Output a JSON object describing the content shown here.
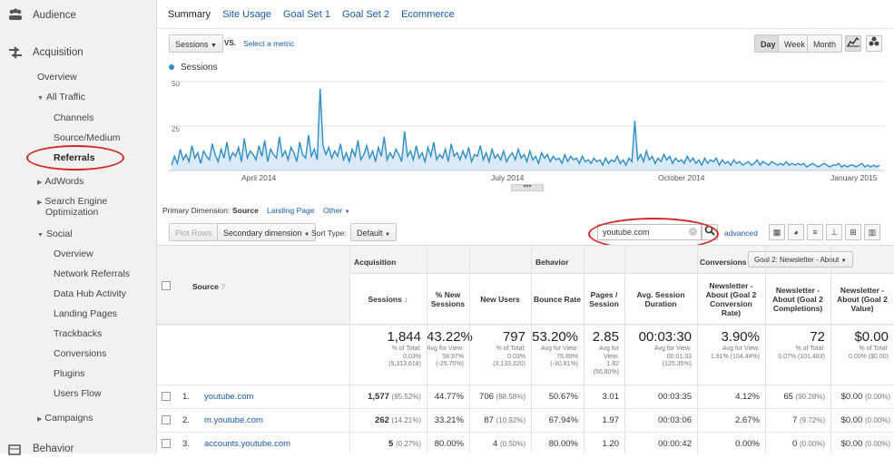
{
  "sidebar": {
    "sections": {
      "audience": "Audience",
      "acquisition": "Acquisition",
      "behavior": "Behavior"
    },
    "items": {
      "overview": "Overview",
      "all_traffic": "All Traffic",
      "channels": "Channels",
      "source_medium": "Source/Medium",
      "referrals": "Referrals",
      "adwords": "AdWords",
      "seo_1": "Search Engine",
      "seo_2": "Optimization",
      "social": "Social",
      "social_overview": "Overview",
      "network_referrals": "Network Referrals",
      "data_hub": "Data Hub Activity",
      "landing_pages": "Landing Pages",
      "trackbacks": "Trackbacks",
      "conversions": "Conversions",
      "plugins": "Plugins",
      "users_flow": "Users Flow",
      "campaigns": "Campaigns"
    }
  },
  "tabs": [
    "Summary",
    "Site Usage",
    "Goal Set 1",
    "Goal Set 2",
    "Ecommerce"
  ],
  "toolbar": {
    "metric_select": "Sessions",
    "vs": "VS.",
    "select_metric": "Select a metric",
    "day": "Day",
    "week": "Week",
    "month": "Month"
  },
  "chart_data": {
    "type": "line",
    "legend": "Sessions",
    "y_ticks": [
      "50",
      "25"
    ],
    "x_ticks": [
      "April 2014",
      "July 2014",
      "October 2014",
      "January 2015"
    ],
    "ylim": [
      0,
      50
    ],
    "series": [
      {
        "name": "Sessions",
        "values": [
          3,
          8,
          4,
          12,
          6,
          9,
          5,
          14,
          7,
          10,
          4,
          11,
          8,
          6,
          15,
          9,
          5,
          12,
          7,
          16,
          6,
          10,
          8,
          13,
          5,
          18,
          7,
          11,
          9,
          6,
          14,
          8,
          17,
          5,
          12,
          9,
          7,
          19,
          8,
          11,
          6,
          13,
          10,
          5,
          16,
          9,
          7,
          20,
          8,
          12,
          6,
          46,
          14,
          9,
          13,
          7,
          11,
          8,
          15,
          6,
          10,
          5,
          12,
          8,
          17,
          6,
          9,
          14,
          7,
          11,
          5,
          13,
          8,
          19,
          6,
          10,
          7,
          12,
          9,
          5,
          22,
          8,
          11,
          6,
          14,
          7,
          10,
          5,
          13,
          8,
          16,
          6,
          9,
          7,
          12,
          5,
          15,
          8,
          10,
          6,
          11,
          7,
          13,
          5,
          9,
          8,
          14,
          6,
          10,
          5,
          12,
          7,
          9,
          6,
          11,
          5,
          8,
          10,
          6,
          12,
          7,
          9,
          5,
          11,
          6,
          8,
          4,
          10,
          7,
          9,
          5,
          8,
          6,
          7,
          4,
          9,
          5,
          8,
          6,
          7,
          4,
          8,
          5,
          6,
          4,
          7,
          5,
          6,
          3,
          7,
          4,
          6,
          5,
          8,
          4,
          6,
          3,
          7,
          5,
          28,
          6,
          9,
          5,
          11,
          6,
          8,
          4,
          7,
          5,
          9,
          6,
          8,
          4,
          7,
          5,
          6,
          4,
          8,
          5,
          7,
          4,
          6,
          3,
          7,
          4,
          6,
          5,
          7,
          3,
          6,
          4,
          5,
          3,
          6,
          4,
          5,
          3,
          4,
          5,
          3,
          4,
          6,
          3,
          5,
          4,
          3,
          5,
          4,
          3,
          4,
          3,
          5,
          3,
          4,
          3,
          4,
          3,
          4,
          2,
          3,
          4,
          3,
          2,
          3,
          4,
          3,
          2,
          3,
          3,
          4,
          2,
          3,
          2,
          3,
          3,
          2,
          3,
          4,
          2,
          3,
          2,
          3,
          2,
          3
        ]
      }
    ]
  },
  "primary_dimension": {
    "label": "Primary Dimension:",
    "source": "Source",
    "landing_page": "Landing Page",
    "other": "Other"
  },
  "table_toolbar": {
    "plot_rows": "Plot Rows",
    "secondary": "Secondary dimension",
    "sort_type_label": "Sort Type:",
    "sort_type": "Default",
    "search_value": "youtube.com",
    "advanced": "advanced"
  },
  "table": {
    "source_header": "Source",
    "groups": {
      "acquisition": "Acquisition",
      "behavior": "Behavior",
      "conversions": "Conversions",
      "goal_select": "Goal 2: Newsletter - About"
    },
    "columns": [
      [
        "Sessions"
      ],
      [
        "% New",
        "Sessions"
      ],
      [
        "New Users"
      ],
      [
        "Bounce Rate"
      ],
      [
        "Pages /",
        "Session"
      ],
      [
        "Avg. Session",
        "Duration"
      ],
      [
        "Newsletter -",
        "About (Goal 2",
        "Conversion",
        "Rate)"
      ],
      [
        "Newsletter -",
        "About (Goal 2",
        "Completions)"
      ],
      [
        "Newsletter -",
        "About (Goal 2",
        "Value)"
      ]
    ],
    "totals": [
      {
        "big": "1,844",
        "sub": [
          "% of Total:",
          "0.03%",
          "(5,313,618)"
        ]
      },
      {
        "big": "43.22%",
        "sub": [
          "Avg for View:",
          "58.97%",
          "(-26.70%)"
        ]
      },
      {
        "big": "797",
        "sub": [
          "% of Total:",
          "0.03%",
          "(3,133,320)"
        ]
      },
      {
        "big": "53.20%",
        "sub": [
          "Avg for View:",
          "76.89%",
          "(-30.81%)"
        ]
      },
      {
        "big": "2.85",
        "sub": [
          "Avg for",
          "View:",
          "1.82",
          "(56.80%)"
        ]
      },
      {
        "big": "00:03:30",
        "sub": [
          "Avg for View:",
          "00:01:33",
          "(125.35%)"
        ]
      },
      {
        "big": "3.90%",
        "sub": [
          "Avg for View:",
          "1.91% (104.44%)"
        ]
      },
      {
        "big": "72",
        "sub": [
          "% of Total:",
          "0.07% (101,483)"
        ]
      },
      {
        "big": "$0.00",
        "sub": [
          "% of Total:",
          "0.00% ($0.00)"
        ]
      }
    ],
    "rows": [
      {
        "n": "1.",
        "source": "youtube.com",
        "sessions": "1,577",
        "sessions_pct": "(85.52%)",
        "new_pct": "44.77%",
        "new_users": "706",
        "new_users_pct": "(88.58%)",
        "bounce": "50.67%",
        "pages": "3.01",
        "duration": "00:03:35",
        "conv_rate": "4.12%",
        "completions": "65",
        "completions_pct": "(90.28%)",
        "value": "$0.00",
        "value_pct": "(0.00%)"
      },
      {
        "n": "2.",
        "source": "m.youtube.com",
        "sessions": "262",
        "sessions_pct": "(14.21%)",
        "new_pct": "33.21%",
        "new_users": "87",
        "new_users_pct": "(10.92%)",
        "bounce": "67.94%",
        "pages": "1.97",
        "duration": "00:03:06",
        "conv_rate": "2.67%",
        "completions": "7",
        "completions_pct": "(9.72%)",
        "value": "$0.00",
        "value_pct": "(0.00%)"
      },
      {
        "n": "3.",
        "source": "accounts.youtube.com",
        "sessions": "5",
        "sessions_pct": "(0.27%)",
        "new_pct": "80.00%",
        "new_users": "4",
        "new_users_pct": "(0.50%)",
        "bounce": "80.00%",
        "pages": "1.20",
        "duration": "00:00:42",
        "conv_rate": "0.00%",
        "completions": "0",
        "completions_pct": "(0.00%)",
        "value": "$0.00",
        "value_pct": "(0.00%)"
      }
    ]
  },
  "colors": {
    "line": "#2f8fc6",
    "fill": "#dbeaf6",
    "highlight_ring": "#d02a2a",
    "link": "#1a5aa6"
  }
}
